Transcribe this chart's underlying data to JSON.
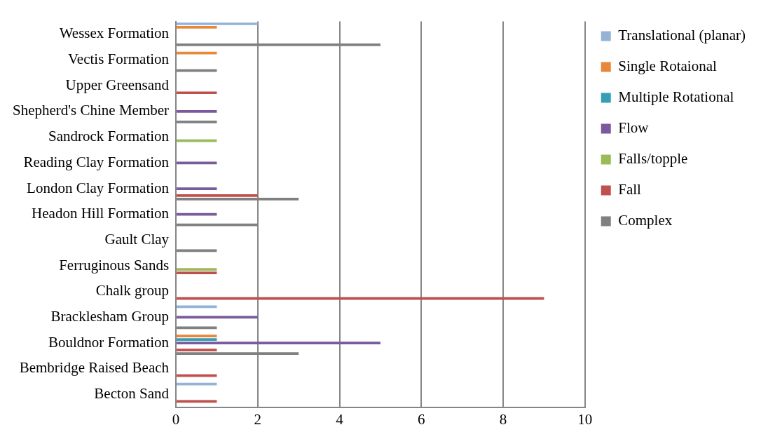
{
  "chart_data": {
    "type": "bar",
    "orientation": "horizontal",
    "categories": [
      "Wessex Formation",
      "Vectis Formation",
      "Upper Greensand",
      "Shepherd's Chine Member",
      "Sandrock Formation",
      "Reading Clay Formation",
      "London Clay Formation",
      "Headon Hill Formation",
      "Gault Clay",
      "Ferruginous Sands",
      "Chalk group",
      "Bracklesham Group",
      "Bouldnor Formation",
      "Bembridge Raised Beach",
      "Becton Sand"
    ],
    "series": [
      {
        "name": "Translational (planar)",
        "color": "#95b3d7",
        "values": [
          2,
          null,
          null,
          null,
          null,
          null,
          null,
          null,
          null,
          null,
          null,
          1,
          null,
          null,
          1
        ]
      },
      {
        "name": "Single Rotaional",
        "color": "#e8883a",
        "values": [
          1,
          1,
          null,
          null,
          null,
          null,
          null,
          null,
          null,
          null,
          null,
          null,
          1,
          null,
          null
        ]
      },
      {
        "name": "Multiple Rotational",
        "color": "#35a0b5",
        "values": [
          null,
          null,
          null,
          null,
          null,
          null,
          null,
          null,
          null,
          null,
          null,
          null,
          1,
          null,
          null
        ]
      },
      {
        "name": "Flow",
        "color": "#7a5a9c",
        "values": [
          null,
          null,
          null,
          1,
          null,
          1,
          1,
          1,
          null,
          null,
          null,
          2,
          5,
          null,
          null
        ]
      },
      {
        "name": "Falls/topple",
        "color": "#9bbb59",
        "values": [
          null,
          null,
          null,
          null,
          1,
          null,
          null,
          null,
          null,
          1,
          null,
          null,
          null,
          null,
          null
        ]
      },
      {
        "name": "Fall",
        "color": "#c0504d",
        "values": [
          null,
          null,
          1,
          null,
          null,
          null,
          2,
          null,
          null,
          1,
          9,
          null,
          1,
          1,
          1
        ]
      },
      {
        "name": "Complex",
        "color": "#808080",
        "values": [
          5,
          1,
          null,
          1,
          null,
          null,
          3,
          2,
          1,
          null,
          null,
          1,
          3,
          null,
          null
        ]
      }
    ],
    "xlim": [
      0,
      10
    ],
    "xticks": [
      0,
      2,
      4,
      6,
      8,
      10
    ],
    "grid": "x",
    "legend": "right"
  }
}
